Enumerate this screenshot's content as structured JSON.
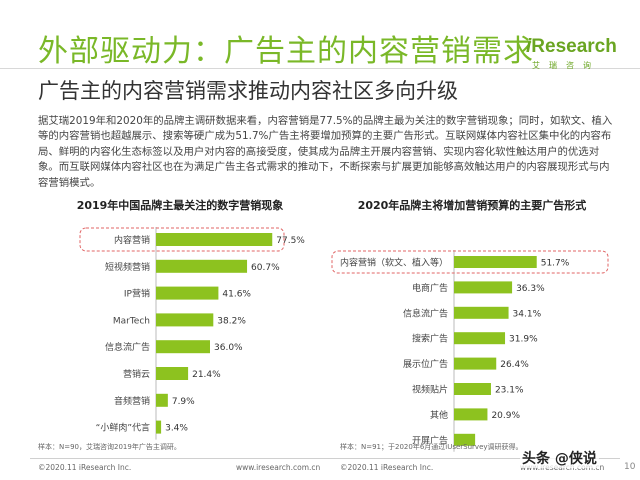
{
  "title": "外部驱动力：广告主的内容营销需求",
  "subtitle": "广告主的内容营销需求推动内容社区多向升级",
  "logo": {
    "text_i": "i",
    "text_main": "Research",
    "sub": "艾瑞咨询"
  },
  "body": "据艾瑞2019年和2020年的品牌主调研数据来看，内容营销是77.5%的品牌主最为关注的数字营销现象；同时，如软文、植入等的内容营销也超越展示、搜索等硬广成为51.7%广告主将要增加预算的主要广告形式。互联网媒体内容社区集中化的内容布局、鲜明的内容化生态标签以及用户对内容的高接受度，使其成为品牌主开展内容营销、实现内容化软性触达用户的优选对象。而互联网媒体内容社区也在为满足广告主各式需求的推动下，不断探索与扩展更加能够高效触达用户的内容展现形式与内容营销模式。",
  "chart_data": [
    {
      "type": "bar",
      "orientation": "horizontal",
      "title": "2019年中国品牌主最关注的数字营销现象",
      "categories": [
        "内容营销",
        "短视频营销",
        "IP营销",
        "MarTech",
        "信息流广告",
        "营销云",
        "音频营销",
        "“小鲜肉”代言"
      ],
      "values": [
        77.5,
        60.7,
        41.6,
        38.2,
        36.0,
        21.4,
        7.9,
        3.4
      ],
      "labels": [
        "77.5%",
        "60.7%",
        "41.6%",
        "38.2%",
        "36.0%",
        "21.4%",
        "7.9%",
        "3.4%"
      ],
      "highlight_index": 0,
      "color": "#8dc21f",
      "xlim": [
        0,
        100
      ]
    },
    {
      "type": "bar",
      "orientation": "horizontal",
      "title": "2020年品牌主将增加营销预算的主要广告形式",
      "categories": [
        "内容营销（软文、植入等）",
        "电商广告",
        "信息流广告",
        "搜索广告",
        "展示位广告",
        "视频贴片",
        "其他",
        "开屏广告"
      ],
      "values": [
        51.7,
        36.3,
        34.1,
        31.9,
        26.4,
        23.1,
        20.9,
        13.2
      ],
      "labels": [
        "51.7%",
        "36.3%",
        "34.1%",
        "31.9%",
        "26.4%",
        "23.1%",
        "20.9%",
        ""
      ],
      "highlight_index": 0,
      "color": "#8dc21f",
      "xlim": [
        0,
        100
      ]
    }
  ],
  "notes": {
    "left": "样本：N=90，艾瑞咨询2019年广告主调研。",
    "right": "样本：N=91；于2020年6月通过iUserSurvey调研获得。"
  },
  "footer": {
    "copyright_left": "©2020.11 iResearch Inc.",
    "url_left": "www.iresearch.com.cn",
    "copyright_right": "©2020.11 iResearch Inc.",
    "url_right": "www.iresearch.com.cn"
  },
  "watermark": "头条 @侠说",
  "page_number": "10"
}
